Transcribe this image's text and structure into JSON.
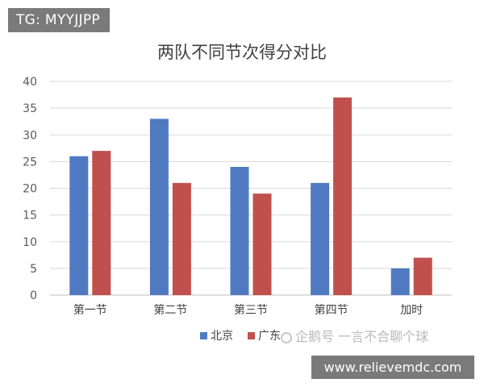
{
  "overlay": {
    "top_tag": "TG: MYYJJPP",
    "watermark": "企鹅号 一言不合聊个球",
    "bottom_tag": "www.relievemdc.com"
  },
  "chart_data": {
    "type": "bar",
    "title": "两队不同节次得分对比",
    "categories": [
      "第一节",
      "第二节",
      "第三节",
      "第四节",
      "加时"
    ],
    "series": [
      {
        "name": "北京",
        "color": "#4f7ac1",
        "values": [
          26,
          33,
          24,
          21,
          5
        ]
      },
      {
        "name": "广东",
        "color": "#c0504d",
        "values": [
          27,
          21,
          19,
          37,
          7
        ]
      }
    ],
    "ylim": [
      0,
      40
    ],
    "yticks": [
      0,
      5,
      10,
      15,
      20,
      25,
      30,
      35,
      40
    ],
    "grid": true,
    "legend_position": "bottom"
  }
}
